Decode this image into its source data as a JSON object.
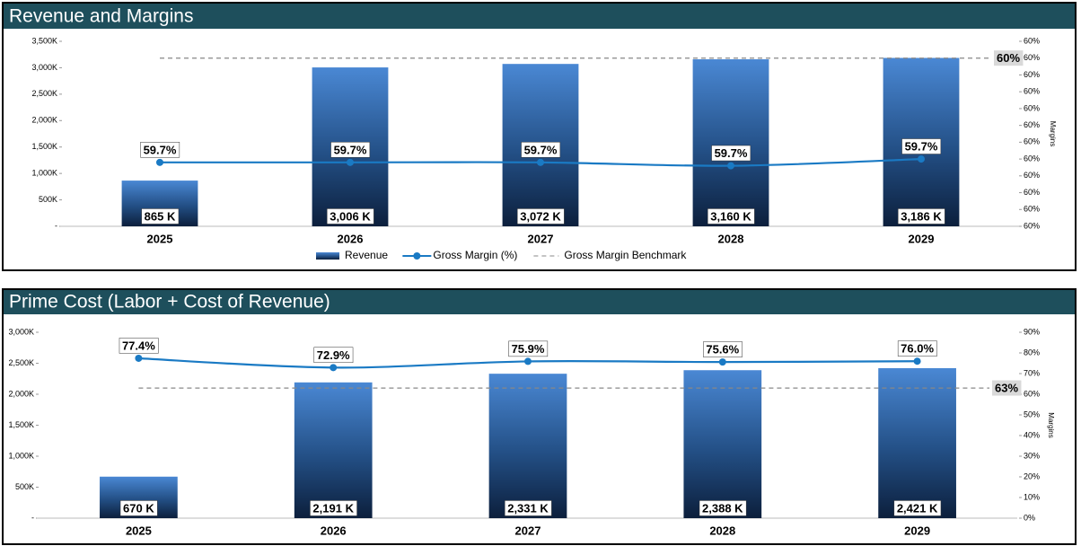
{
  "chart_data": [
    {
      "type": "combo",
      "title": "Revenue and Margins",
      "categories": [
        "2025",
        "2026",
        "2027",
        "2028",
        "2029"
      ],
      "series": [
        {
          "name": "Revenue",
          "type": "bar",
          "color": "#3a78c4",
          "values": [
            865,
            3006,
            3072,
            3160,
            3186
          ],
          "value_labels": [
            "865 K",
            "3,006 K",
            "3,072 K",
            "3,160 K",
            "3,186 K"
          ]
        },
        {
          "name": "Gross Margin (%)",
          "type": "line",
          "axis": "y2",
          "color": "#1a7ac4",
          "values": [
            59.69,
            59.69,
            59.69,
            59.68,
            59.7
          ],
          "value_labels": [
            "59.7%",
            "59.7%",
            "59.7%",
            "59.7%",
            "59.7%"
          ]
        }
      ],
      "benchmark": {
        "name": "Gross Margin Benchmark",
        "value": 60,
        "value_label": "60%",
        "axis": "y2",
        "color": "#888888"
      },
      "ylim": [
        0,
        3500
      ],
      "yticks": [
        {
          "value": 0,
          "label": "-"
        },
        {
          "value": 500,
          "label": "500K"
        },
        {
          "value": 1000,
          "label": "1,000K"
        },
        {
          "value": 1500,
          "label": "1,500K"
        },
        {
          "value": 2000,
          "label": "2,000K"
        },
        {
          "value": 2500,
          "label": "2,500K"
        },
        {
          "value": 3000,
          "label": "3,000K"
        },
        {
          "value": 3500,
          "label": "3,500K"
        }
      ],
      "y2lim": [
        59.5,
        60.05
      ],
      "y2ticks": [
        {
          "value": 59.5,
          "label": "60%"
        },
        {
          "value": 59.55,
          "label": "60%"
        },
        {
          "value": 59.6,
          "label": "60%"
        },
        {
          "value": 59.65,
          "label": "60%"
        },
        {
          "value": 59.7,
          "label": "60%"
        },
        {
          "value": 59.75,
          "label": "60%"
        },
        {
          "value": 59.8,
          "label": "60%"
        },
        {
          "value": 59.85,
          "label": "60%"
        },
        {
          "value": 59.9,
          "label": "60%"
        },
        {
          "value": 59.95,
          "label": "60%"
        },
        {
          "value": 60.0,
          "label": "60%"
        },
        {
          "value": 60.05,
          "label": "60%"
        }
      ],
      "y2_label": "Margins",
      "legend": "bottom"
    },
    {
      "type": "combo",
      "title": "Prime Cost (Labor + Cost of Revenue)",
      "categories": [
        "2025",
        "2026",
        "2027",
        "2028",
        "2029"
      ],
      "series": [
        {
          "type": "bar",
          "color": "#3a78c4",
          "values": [
            670,
            2191,
            2331,
            2388,
            2421
          ],
          "value_labels": [
            "670 K",
            "2,191 K",
            "2,331 K",
            "2,388 K",
            "2,421 K"
          ]
        },
        {
          "type": "line",
          "axis": "y2",
          "color": "#1a7ac4",
          "values": [
            77.4,
            72.9,
            75.9,
            75.6,
            76.0
          ],
          "value_labels": [
            "77.4%",
            "72.9%",
            "75.9%",
            "75.6%",
            "76.0%"
          ]
        }
      ],
      "benchmark": {
        "value": 63,
        "value_label": "63%",
        "axis": "y2",
        "color": "#888888"
      },
      "ylim": [
        0,
        3000
      ],
      "yticks": [
        {
          "value": 0,
          "label": "-"
        },
        {
          "value": 500,
          "label": "500K"
        },
        {
          "value": 1000,
          "label": "1,000K"
        },
        {
          "value": 1500,
          "label": "1,500K"
        },
        {
          "value": 2000,
          "label": "2,000K"
        },
        {
          "value": 2500,
          "label": "2,500K"
        },
        {
          "value": 3000,
          "label": "3,000K"
        }
      ],
      "y2lim": [
        0,
        90
      ],
      "y2ticks": [
        {
          "value": 0,
          "label": "0%"
        },
        {
          "value": 10,
          "label": "10%"
        },
        {
          "value": 20,
          "label": "20%"
        },
        {
          "value": 30,
          "label": "30%"
        },
        {
          "value": 40,
          "label": "40%"
        },
        {
          "value": 50,
          "label": "50%"
        },
        {
          "value": 60,
          "label": "60%"
        },
        {
          "value": 70,
          "label": "70%"
        },
        {
          "value": 80,
          "label": "80%"
        },
        {
          "value": 90,
          "label": "90%"
        }
      ],
      "y2_label": "Margins"
    }
  ]
}
